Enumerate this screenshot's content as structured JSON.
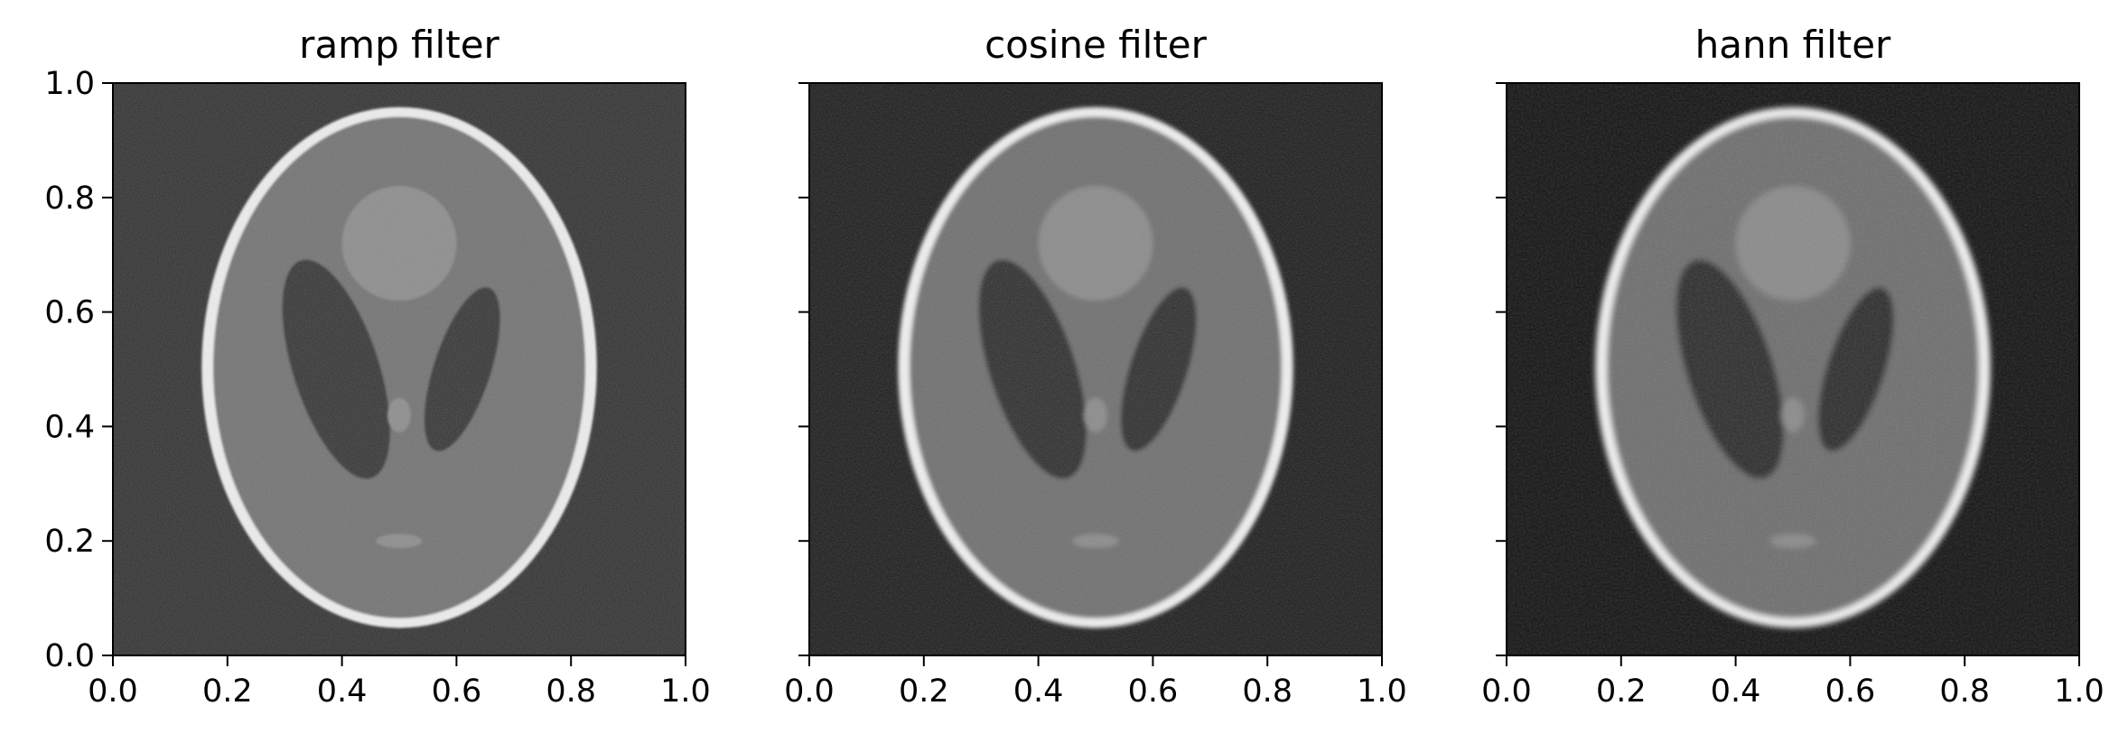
{
  "chart_data": [
    {
      "type": "heatmap",
      "title": "ramp filter",
      "xlabel": "",
      "ylabel": "",
      "xlim": [
        0.0,
        1.0
      ],
      "ylim": [
        0.0,
        1.0
      ],
      "xticks": [
        "0.0",
        "0.2",
        "0.4",
        "0.6",
        "0.8",
        "1.0"
      ],
      "yticks": [
        "0.0",
        "0.2",
        "0.4",
        "0.6",
        "0.8",
        "1.0"
      ],
      "grid": false,
      "colormap": "gray",
      "image": "Shepp-Logan phantom reconstruction"
    },
    {
      "type": "heatmap",
      "title": "cosine filter",
      "xlabel": "",
      "ylabel": "",
      "xlim": [
        0.0,
        1.0
      ],
      "ylim": [
        0.0,
        1.0
      ],
      "xticks": [
        "0.0",
        "0.2",
        "0.4",
        "0.6",
        "0.8",
        "1.0"
      ],
      "yticks": [],
      "grid": false,
      "colormap": "gray",
      "image": "Shepp-Logan phantom reconstruction"
    },
    {
      "type": "heatmap",
      "title": "hann filter",
      "xlabel": "",
      "ylabel": "",
      "xlim": [
        0.0,
        1.0
      ],
      "ylim": [
        0.0,
        1.0
      ],
      "xticks": [
        "0.0",
        "0.2",
        "0.4",
        "0.6",
        "0.8",
        "1.0"
      ],
      "yticks": [],
      "grid": false,
      "colormap": "gray",
      "image": "Shepp-Logan phantom reconstruction"
    }
  ],
  "colors": {
    "background_ramp": "#2a2a2a",
    "background_cosine": "#1c1c1c",
    "background_hann": "#141414",
    "skull": "#f2f2f2",
    "brain": "#6e6e6e",
    "ventricle": "#2e2e2e",
    "upper_region": "#8a8a8a"
  }
}
